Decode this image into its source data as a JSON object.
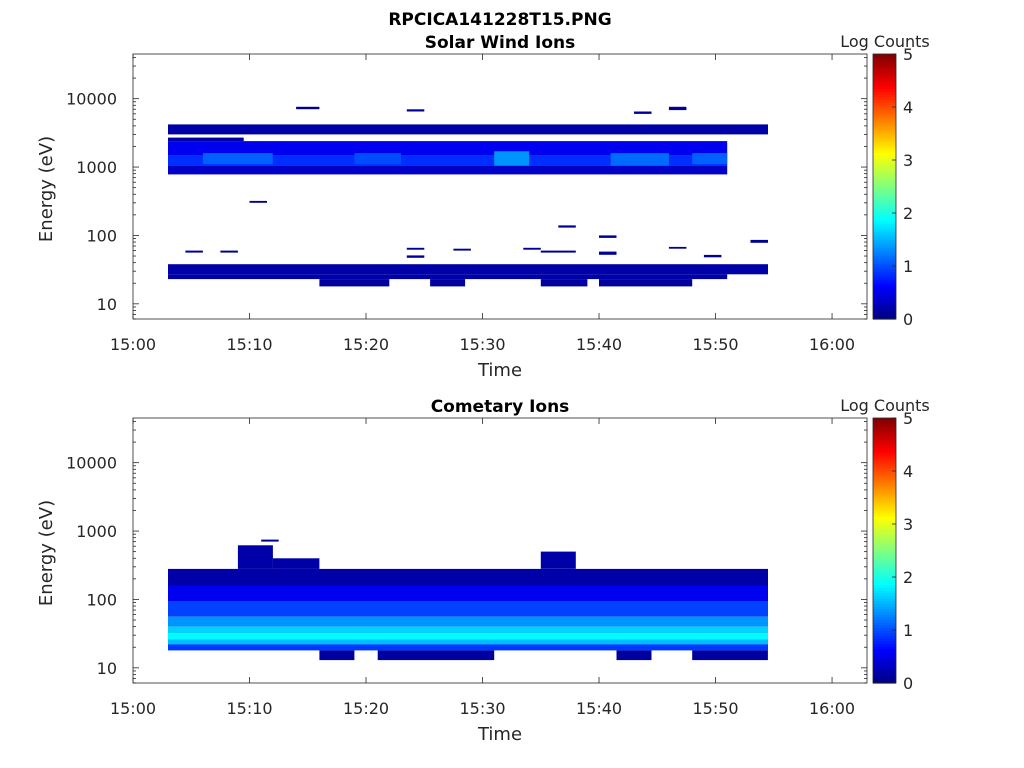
{
  "figure_title": "RPCICA141228T15.PNG",
  "colorbar_scale": {
    "min": 0,
    "max": 5,
    "colormap": "jet",
    "ticks": [
      "0",
      "1",
      "2",
      "3",
      "4",
      "5"
    ]
  },
  "chart_data": [
    {
      "type": "heatmap",
      "title": "Solar Wind Ions",
      "xlabel": "Time",
      "ylabel": "Energy (eV)",
      "colorbar_label": "Log Counts",
      "x_ticks": [
        "15:00",
        "15:10",
        "15:20",
        "15:30",
        "15:40",
        "15:50",
        "16:00"
      ],
      "x_range_minutes": [
        0,
        63
      ],
      "y_ticks": [
        "10",
        "100",
        "1000",
        "10000"
      ],
      "y_range_eV": [
        6,
        45000
      ],
      "y_scale": "log",
      "blocks": [
        {
          "t0": 3,
          "t1": 54.5,
          "e0": 3000,
          "e1": 4200,
          "v": 0.2
        },
        {
          "t0": 3,
          "t1": 9.5,
          "e0": 2400,
          "e1": 2700,
          "v": 0.2
        },
        {
          "t0": 3,
          "t1": 51,
          "e0": 1500,
          "e1": 2400,
          "v": 0.55
        },
        {
          "t0": 3,
          "t1": 51,
          "e0": 1050,
          "e1": 1500,
          "v": 0.85
        },
        {
          "t0": 3,
          "t1": 51,
          "e0": 780,
          "e1": 1050,
          "v": 0.35
        },
        {
          "t0": 6,
          "t1": 12,
          "e0": 1100,
          "e1": 1600,
          "v": 1.1
        },
        {
          "t0": 19,
          "t1": 23,
          "e0": 1100,
          "e1": 1600,
          "v": 1.0
        },
        {
          "t0": 31,
          "t1": 34,
          "e0": 1050,
          "e1": 1700,
          "v": 1.35
        },
        {
          "t0": 41,
          "t1": 46,
          "e0": 1050,
          "e1": 1600,
          "v": 1.15
        },
        {
          "t0": 48,
          "t1": 51,
          "e0": 1100,
          "e1": 1600,
          "v": 1.1
        },
        {
          "t0": 14,
          "t1": 16,
          "e0": 7000,
          "e1": 7600,
          "v": 0.1
        },
        {
          "t0": 23.5,
          "t1": 25,
          "e0": 6500,
          "e1": 7000,
          "v": 0.1
        },
        {
          "t0": 43,
          "t1": 44.5,
          "e0": 6000,
          "e1": 6500,
          "v": 0.1
        },
        {
          "t0": 46,
          "t1": 47.5,
          "e0": 6800,
          "e1": 7600,
          "v": 0.1
        },
        {
          "t0": 10,
          "t1": 11.5,
          "e0": 300,
          "e1": 320,
          "v": 0.1
        },
        {
          "t0": 3,
          "t1": 54.5,
          "e0": 27,
          "e1": 38,
          "v": 0.2
        },
        {
          "t0": 3,
          "t1": 51,
          "e0": 23,
          "e1": 27,
          "v": 0.2
        },
        {
          "t0": 16,
          "t1": 22,
          "e0": 18,
          "e1": 23,
          "v": 0.15
        },
        {
          "t0": 25.5,
          "t1": 28.5,
          "e0": 18,
          "e1": 23,
          "v": 0.15
        },
        {
          "t0": 35,
          "t1": 39,
          "e0": 18,
          "e1": 23,
          "v": 0.15
        },
        {
          "t0": 40,
          "t1": 48,
          "e0": 18,
          "e1": 23,
          "v": 0.15
        },
        {
          "t0": 4.5,
          "t1": 6,
          "e0": 56,
          "e1": 60,
          "v": 0.1
        },
        {
          "t0": 7.5,
          "t1": 9,
          "e0": 56,
          "e1": 60,
          "v": 0.1
        },
        {
          "t0": 23.5,
          "t1": 25,
          "e0": 62,
          "e1": 66,
          "v": 0.1
        },
        {
          "t0": 23.5,
          "t1": 25,
          "e0": 47,
          "e1": 51,
          "v": 0.1
        },
        {
          "t0": 27.5,
          "t1": 29,
          "e0": 60,
          "e1": 64,
          "v": 0.1
        },
        {
          "t0": 33.5,
          "t1": 35,
          "e0": 62,
          "e1": 66,
          "v": 0.1
        },
        {
          "t0": 35,
          "t1": 38,
          "e0": 56,
          "e1": 60,
          "v": 0.1
        },
        {
          "t0": 36.5,
          "t1": 38,
          "e0": 130,
          "e1": 140,
          "v": 0.1
        },
        {
          "t0": 40,
          "t1": 41.5,
          "e0": 92,
          "e1": 100,
          "v": 0.1
        },
        {
          "t0": 40,
          "t1": 41.5,
          "e0": 52,
          "e1": 58,
          "v": 0.1
        },
        {
          "t0": 46,
          "t1": 47.5,
          "e0": 64,
          "e1": 68,
          "v": 0.1
        },
        {
          "t0": 49,
          "t1": 50.5,
          "e0": 48,
          "e1": 52,
          "v": 0.1
        },
        {
          "t0": 53,
          "t1": 54.5,
          "e0": 78,
          "e1": 86,
          "v": 0.1
        }
      ]
    },
    {
      "type": "heatmap",
      "title": "Cometary Ions",
      "xlabel": "Time",
      "ylabel": "Energy (eV)",
      "colorbar_label": "Log Counts",
      "x_ticks": [
        "15:00",
        "15:10",
        "15:20",
        "15:30",
        "15:40",
        "15:50",
        "16:00"
      ],
      "x_range_minutes": [
        0,
        63
      ],
      "y_ticks": [
        "10",
        "100",
        "1000",
        "10000"
      ],
      "y_range_eV": [
        6,
        45000
      ],
      "y_scale": "log",
      "blocks": [
        {
          "t0": 3,
          "t1": 54.5,
          "e0": 160,
          "e1": 280,
          "v": 0.2
        },
        {
          "t0": 9,
          "t1": 12,
          "e0": 280,
          "e1": 620,
          "v": 0.2
        },
        {
          "t0": 12,
          "t1": 16,
          "e0": 280,
          "e1": 400,
          "v": 0.2
        },
        {
          "t0": 35,
          "t1": 38,
          "e0": 280,
          "e1": 500,
          "v": 0.2
        },
        {
          "t0": 11,
          "t1": 12.5,
          "e0": 700,
          "e1": 750,
          "v": 0.1
        },
        {
          "t0": 3,
          "t1": 54.5,
          "e0": 95,
          "e1": 160,
          "v": 0.55
        },
        {
          "t0": 3,
          "t1": 54.5,
          "e0": 56,
          "e1": 95,
          "v": 0.95
        },
        {
          "t0": 3,
          "t1": 54.5,
          "e0": 40,
          "e1": 56,
          "v": 1.35
        },
        {
          "t0": 3,
          "t1": 54.5,
          "e0": 32,
          "e1": 40,
          "v": 1.65
        },
        {
          "t0": 3,
          "t1": 54.5,
          "e0": 26,
          "e1": 32,
          "v": 1.85
        },
        {
          "t0": 3,
          "t1": 54.5,
          "e0": 22,
          "e1": 26,
          "v": 1.55
        },
        {
          "t0": 3,
          "t1": 54.5,
          "e0": 18,
          "e1": 22,
          "v": 0.9
        },
        {
          "t0": 16,
          "t1": 19,
          "e0": 13,
          "e1": 18,
          "v": 0.15
        },
        {
          "t0": 21,
          "t1": 31,
          "e0": 13,
          "e1": 18,
          "v": 0.15
        },
        {
          "t0": 41.5,
          "t1": 44.5,
          "e0": 13,
          "e1": 18,
          "v": 0.15
        },
        {
          "t0": 48,
          "t1": 54.5,
          "e0": 13,
          "e1": 18,
          "v": 0.15
        }
      ]
    }
  ]
}
